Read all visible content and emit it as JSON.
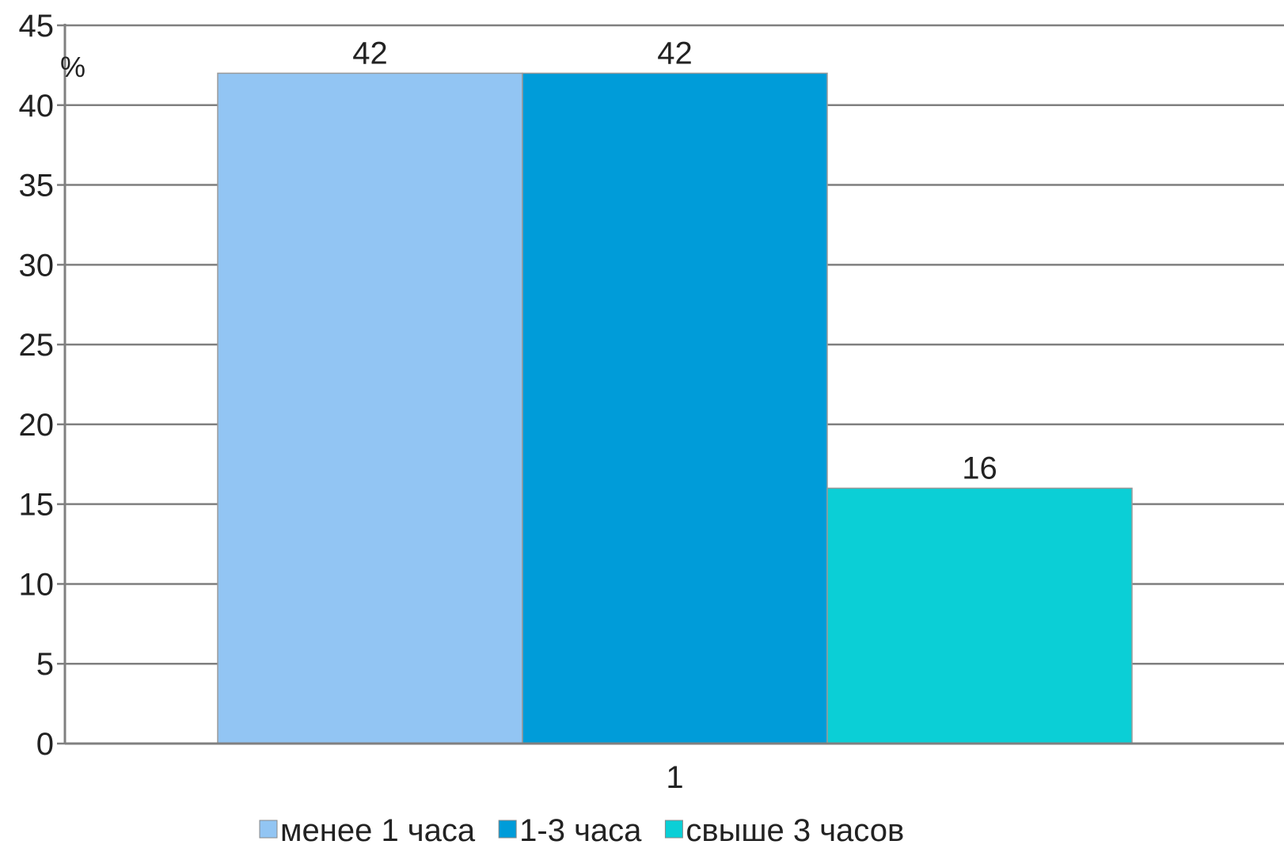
{
  "chart_data": {
    "type": "bar",
    "categories": [
      "1"
    ],
    "series": [
      {
        "name": "менее 1 часа",
        "values": [
          42
        ],
        "color": "#92c5f3"
      },
      {
        "name": "1-3 часа",
        "values": [
          42
        ],
        "color": "#009cd9"
      },
      {
        "name": "свыше 3 часов",
        "values": [
          16
        ],
        "color": "#0bcfd6"
      }
    ],
    "ylim": [
      0,
      45
    ],
    "yticks": [
      0,
      5,
      10,
      15,
      20,
      25,
      30,
      35,
      40,
      45
    ],
    "unit_label": "%",
    "grid": true,
    "legend_position": "bottom"
  }
}
